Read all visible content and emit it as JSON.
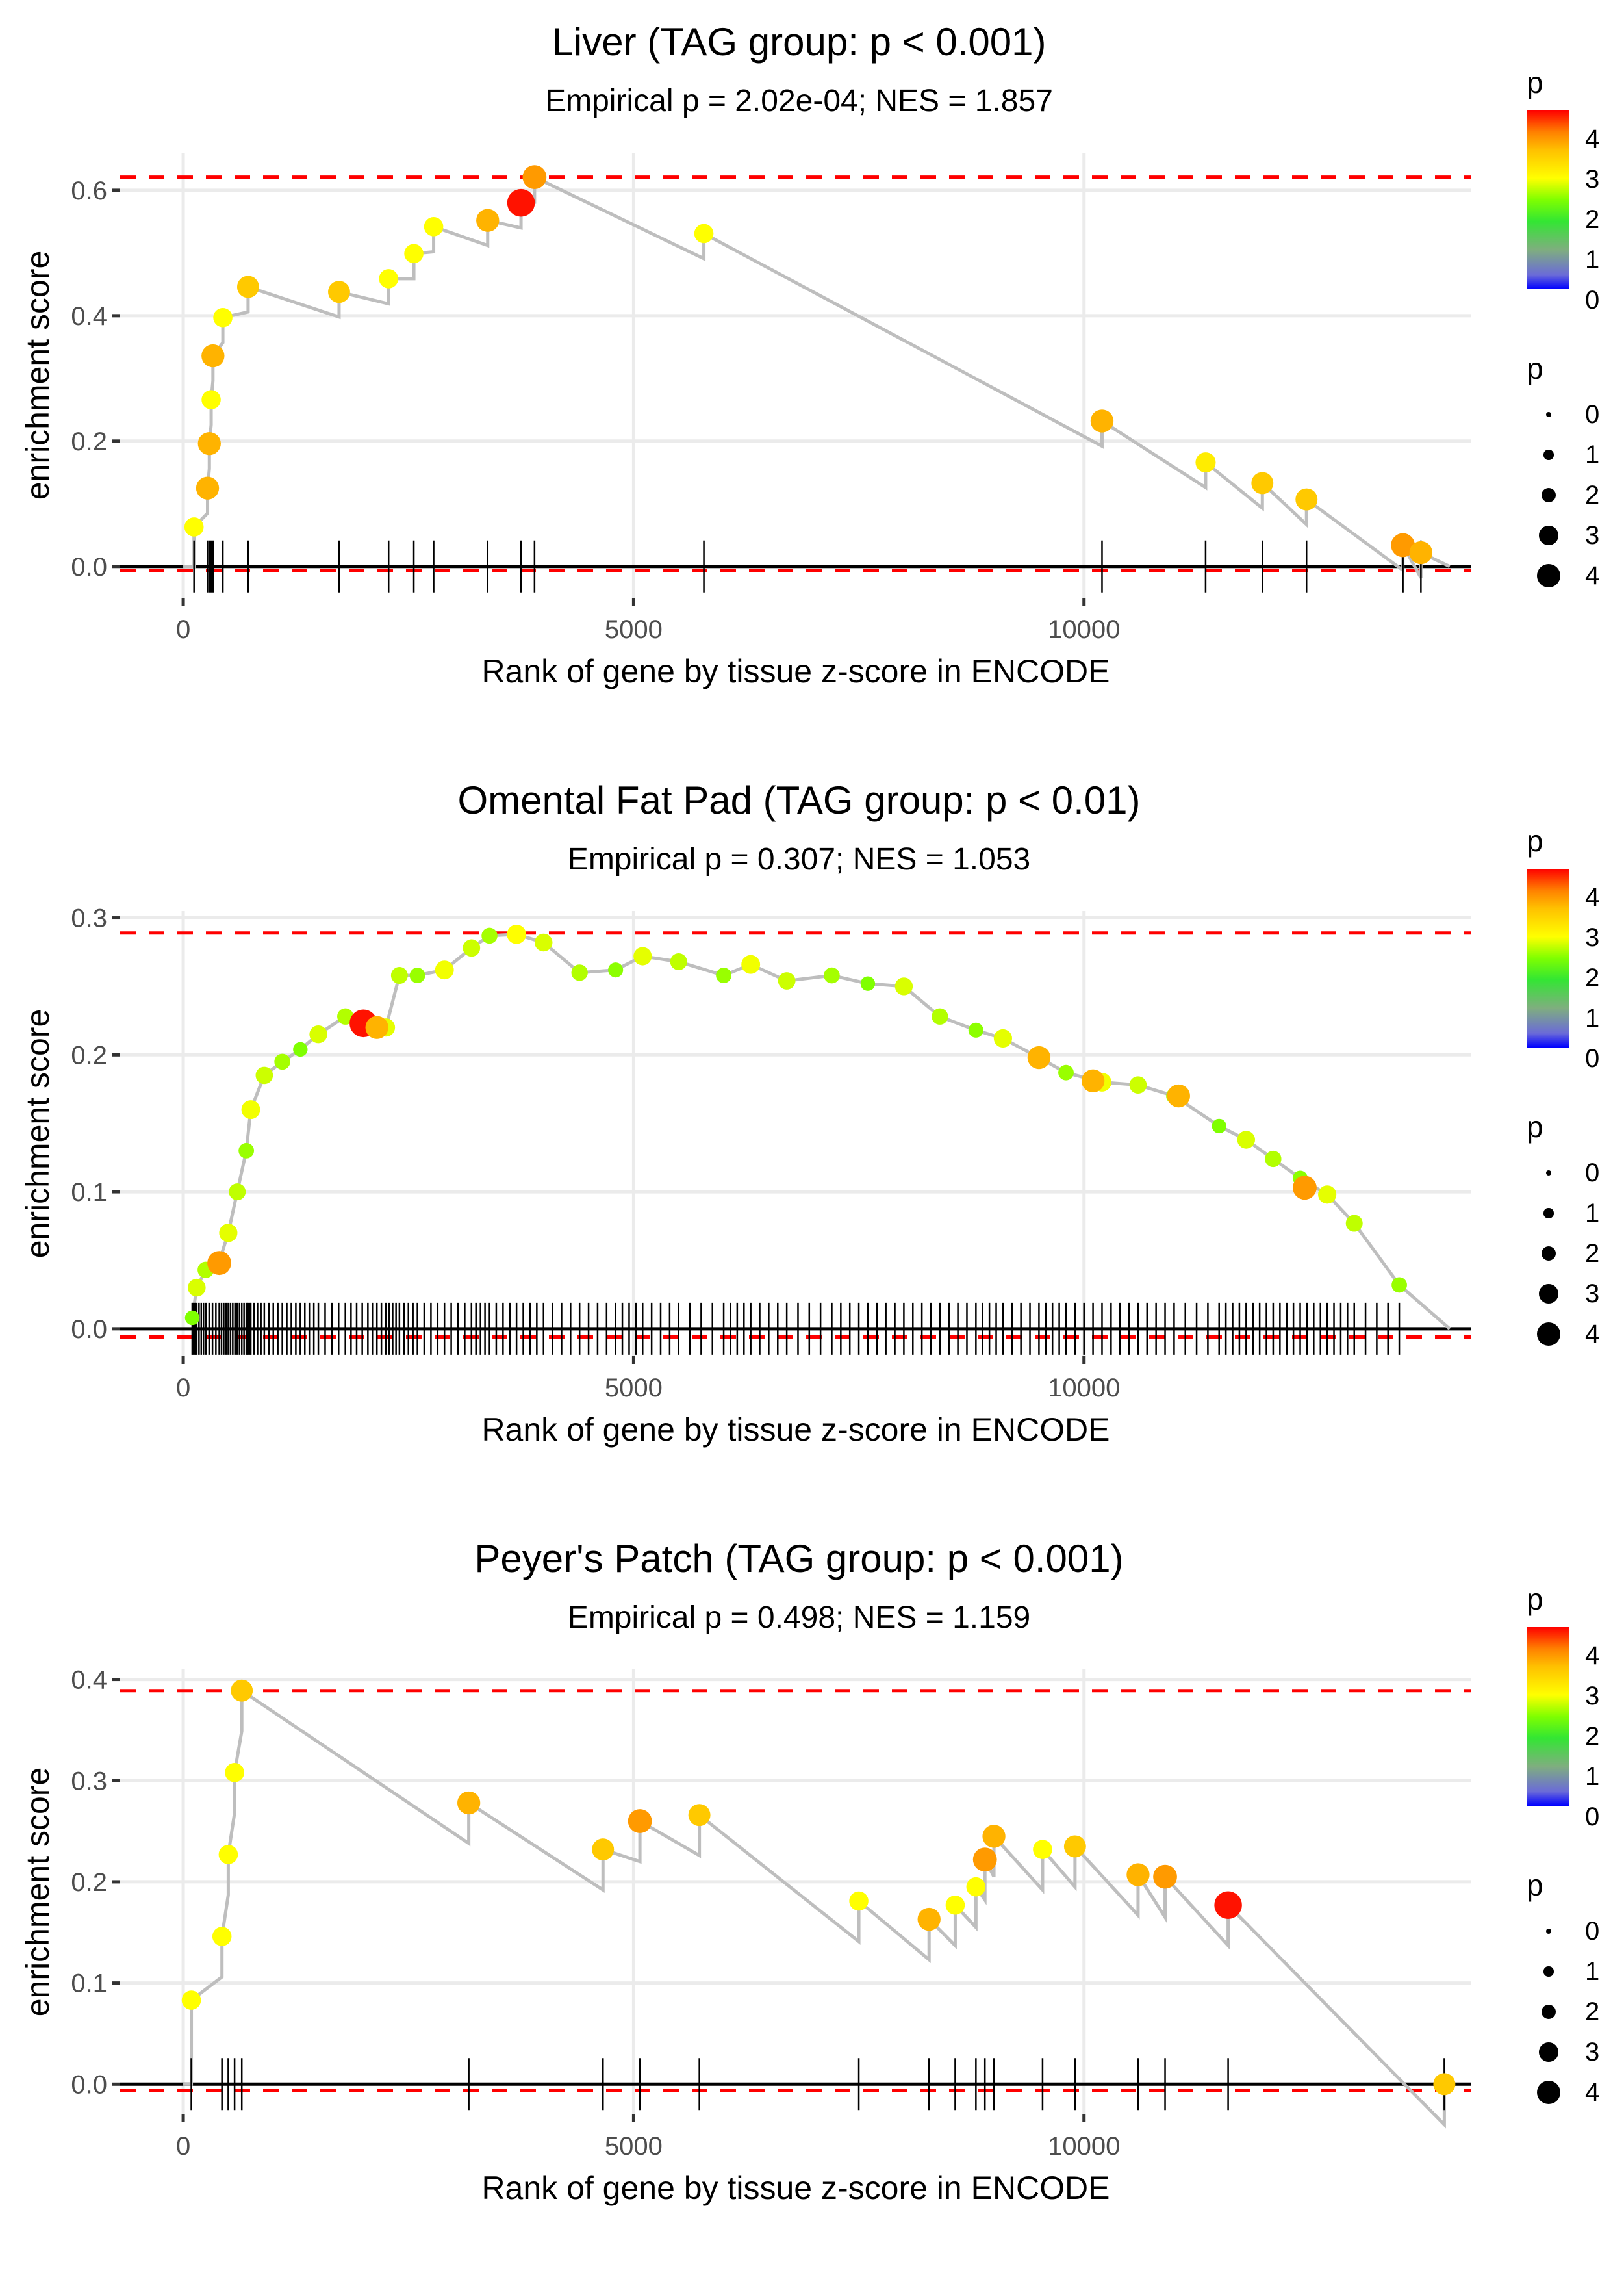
{
  "chart_data": [
    {
      "type": "line",
      "title": "Liver (TAG group: p < 0.001)",
      "subtitle": "Empirical p = 2.02e-04; NES = 1.857",
      "xlabel": "Rank of gene by tissue z-score in ENCODE",
      "ylabel": "enrichment score",
      "xlim": [
        -700,
        14300
      ],
      "ylim": [
        -0.05,
        0.66
      ],
      "xticks": [
        0,
        5000,
        10000
      ],
      "xtick_labels": [
        "0",
        "5000",
        "10000"
      ],
      "yticks": [
        0.0,
        0.2,
        0.4,
        0.6
      ],
      "ytick_labels": [
        "0.0",
        "0.2",
        "0.4",
        "0.6"
      ],
      "ref_lines": [
        0.621,
        -0.006
      ],
      "grid": true,
      "hits": [
        {
          "x": 120,
          "es": 0.063,
          "p": 3.0
        },
        {
          "x": 270,
          "es": 0.125,
          "p": 3.8
        },
        {
          "x": 290,
          "es": 0.196,
          "p": 3.8
        },
        {
          "x": 310,
          "es": 0.266,
          "p": 3.0
        },
        {
          "x": 330,
          "es": 0.336,
          "p": 3.8
        },
        {
          "x": 440,
          "es": 0.397,
          "p": 3.0
        },
        {
          "x": 720,
          "es": 0.446,
          "p": 3.6
        },
        {
          "x": 1730,
          "es": 0.438,
          "p": 3.6
        },
        {
          "x": 2280,
          "es": 0.459,
          "p": 3.0
        },
        {
          "x": 2560,
          "es": 0.499,
          "p": 3.0
        },
        {
          "x": 2780,
          "es": 0.542,
          "p": 3.0
        },
        {
          "x": 3380,
          "es": 0.552,
          "p": 3.8
        },
        {
          "x": 3750,
          "es": 0.58,
          "p": 4.8
        },
        {
          "x": 3900,
          "es": 0.621,
          "p": 4.0
        },
        {
          "x": 5780,
          "es": 0.531,
          "p": 3.0
        },
        {
          "x": 10200,
          "es": 0.232,
          "p": 3.8
        },
        {
          "x": 11350,
          "es": 0.166,
          "p": 3.2
        },
        {
          "x": 11980,
          "es": 0.133,
          "p": 3.6
        },
        {
          "x": 12470,
          "es": 0.107,
          "p": 3.6
        },
        {
          "x": 13540,
          "es": 0.034,
          "p": 4.0
        },
        {
          "x": 13740,
          "es": 0.022,
          "p": 3.8
        }
      ],
      "end_x": 14060,
      "legend": {
        "color_title": "p",
        "color_ticks": [
          "4",
          "3",
          "2",
          "1",
          "0"
        ],
        "size_title": "p",
        "size_labels": [
          "0",
          "1",
          "2",
          "3",
          "4"
        ]
      }
    },
    {
      "type": "line",
      "title": "Omental Fat Pad (TAG group: p < 0.01)",
      "subtitle": "Empirical p = 0.307; NES = 1.053",
      "xlabel": "Rank of gene by tissue z-score in ENCODE",
      "ylabel": "enrichment score",
      "xlim": [
        -700,
        14300
      ],
      "ylim": [
        -0.02,
        0.305
      ],
      "xticks": [
        0,
        5000,
        10000
      ],
      "xtick_labels": [
        "0",
        "5000",
        "10000"
      ],
      "yticks": [
        0.0,
        0.1,
        0.2,
        0.3
      ],
      "ytick_labels": [
        "0.0",
        "0.1",
        "0.2",
        "0.3"
      ],
      "ref_lines": [
        0.289,
        -0.006
      ],
      "grid": true,
      "curve": [
        [
          100,
          0.008
        ],
        [
          150,
          0.03
        ],
        [
          250,
          0.043
        ],
        [
          400,
          0.049
        ],
        [
          500,
          0.07
        ],
        [
          600,
          0.1
        ],
        [
          700,
          0.13
        ],
        [
          750,
          0.16
        ],
        [
          900,
          0.185
        ],
        [
          1100,
          0.195
        ],
        [
          1300,
          0.204
        ],
        [
          1500,
          0.215
        ],
        [
          1800,
          0.228
        ],
        [
          2050,
          0.222
        ],
        [
          2250,
          0.22
        ],
        [
          2400,
          0.258
        ],
        [
          2600,
          0.258
        ],
        [
          2900,
          0.262
        ],
        [
          3200,
          0.278
        ],
        [
          3400,
          0.287
        ],
        [
          3700,
          0.288
        ],
        [
          4000,
          0.282
        ],
        [
          4400,
          0.26
        ],
        [
          4800,
          0.262
        ],
        [
          5100,
          0.272
        ],
        [
          5500,
          0.268
        ],
        [
          6000,
          0.258
        ],
        [
          6300,
          0.266
        ],
        [
          6700,
          0.254
        ],
        [
          7200,
          0.258
        ],
        [
          7600,
          0.252
        ],
        [
          8000,
          0.25
        ],
        [
          8400,
          0.228
        ],
        [
          8800,
          0.218
        ],
        [
          9100,
          0.212
        ],
        [
          9500,
          0.198
        ],
        [
          9800,
          0.187
        ],
        [
          10200,
          0.18
        ],
        [
          10600,
          0.178
        ],
        [
          11000,
          0.17
        ],
        [
          11500,
          0.148
        ],
        [
          11800,
          0.138
        ],
        [
          12100,
          0.124
        ],
        [
          12400,
          0.11
        ],
        [
          12700,
          0.098
        ],
        [
          13000,
          0.077
        ],
        [
          13500,
          0.032
        ],
        [
          14060,
          0.0
        ]
      ],
      "highlight_hits": [
        {
          "x": 400,
          "es": 0.048,
          "p": 4.0
        },
        {
          "x": 2000,
          "es": 0.223,
          "p": 4.8
        },
        {
          "x": 2150,
          "es": 0.22,
          "p": 3.8
        },
        {
          "x": 3700,
          "es": 0.288,
          "p": 3.0
        },
        {
          "x": 9500,
          "es": 0.198,
          "p": 3.8
        },
        {
          "x": 10100,
          "es": 0.181,
          "p": 3.8
        },
        {
          "x": 11050,
          "es": 0.17,
          "p": 3.8
        },
        {
          "x": 12450,
          "es": 0.103,
          "p": 4.0
        }
      ],
      "end_x": 14060,
      "legend": {
        "color_title": "p",
        "color_ticks": [
          "4",
          "3",
          "2",
          "1",
          "0"
        ],
        "size_title": "p",
        "size_labels": [
          "0",
          "1",
          "2",
          "3",
          "4"
        ]
      }
    },
    {
      "type": "line",
      "title": "Peyer's Patch (TAG group: p < 0.001)",
      "subtitle": "Empirical p = 0.498; NES = 1.159",
      "xlabel": "Rank of gene by tissue z-score in ENCODE",
      "ylabel": "enrichment score",
      "xlim": [
        -700,
        14300
      ],
      "ylim": [
        -0.03,
        0.41
      ],
      "xticks": [
        0,
        5000,
        10000
      ],
      "xtick_labels": [
        "0",
        "5000",
        "10000"
      ],
      "yticks": [
        0.0,
        0.1,
        0.2,
        0.3,
        0.4
      ],
      "ytick_labels": [
        "0.0",
        "0.1",
        "0.2",
        "0.3",
        "0.4"
      ],
      "ref_lines": [
        0.389,
        -0.006
      ],
      "grid": true,
      "hits": [
        {
          "x": 90,
          "es": 0.083,
          "p": 3.0
        },
        {
          "x": 430,
          "es": 0.146,
          "p": 3.0
        },
        {
          "x": 500,
          "es": 0.227,
          "p": 3.0
        },
        {
          "x": 570,
          "es": 0.308,
          "p": 3.0
        },
        {
          "x": 650,
          "es": 0.389,
          "p": 3.6
        },
        {
          "x": 3170,
          "es": 0.278,
          "p": 3.8
        },
        {
          "x": 4660,
          "es": 0.232,
          "p": 3.6
        },
        {
          "x": 5070,
          "es": 0.26,
          "p": 4.0
        },
        {
          "x": 5730,
          "es": 0.266,
          "p": 3.6
        },
        {
          "x": 7500,
          "es": 0.181,
          "p": 3.0
        },
        {
          "x": 8280,
          "es": 0.163,
          "p": 3.8
        },
        {
          "x": 8570,
          "es": 0.177,
          "p": 3.0
        },
        {
          "x": 8800,
          "es": 0.195,
          "p": 3.0
        },
        {
          "x": 8900,
          "es": 0.222,
          "p": 4.0
        },
        {
          "x": 9000,
          "es": 0.245,
          "p": 3.8
        },
        {
          "x": 9540,
          "es": 0.232,
          "p": 3.0
        },
        {
          "x": 9900,
          "es": 0.235,
          "p": 3.6
        },
        {
          "x": 10600,
          "es": 0.207,
          "p": 3.8
        },
        {
          "x": 10900,
          "es": 0.205,
          "p": 4.0
        },
        {
          "x": 11600,
          "es": 0.177,
          "p": 4.8
        },
        {
          "x": 14000,
          "es": 0.0,
          "p": 3.6
        }
      ],
      "end_x": 14000,
      "legend": {
        "color_title": "p",
        "color_ticks": [
          "4",
          "3",
          "2",
          "1",
          "0"
        ],
        "size_title": "p",
        "size_labels": [
          "0",
          "1",
          "2",
          "3",
          "4"
        ]
      }
    }
  ],
  "colors": {
    "ref_line": "#ff0000",
    "curve": "#bebebe",
    "grid": "#ebebeb",
    "rug": "#000000",
    "colorscale": [
      "#0000ff",
      "#7f7fbf",
      "#33e633",
      "#7fff00",
      "#ffff00",
      "#ffc000",
      "#ff8000",
      "#ff0000"
    ]
  }
}
